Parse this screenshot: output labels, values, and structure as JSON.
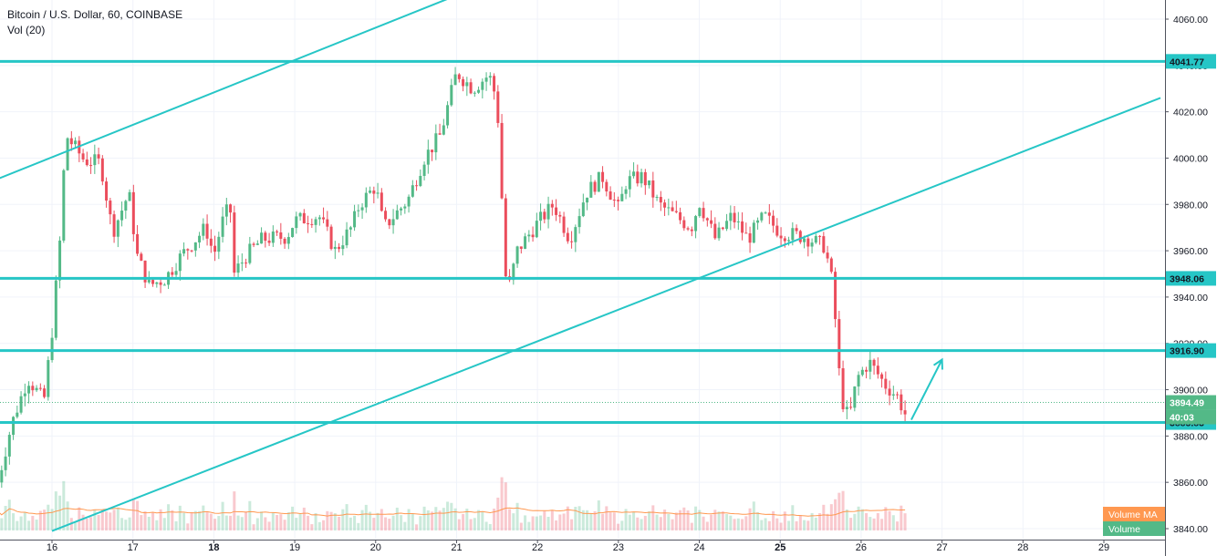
{
  "header": {
    "title": "Bitcoin / U.S. Dollar, 60, COINBASE",
    "subtitle": "Vol (20)"
  },
  "chart_data": {
    "type": "candlestick",
    "symbol": "Bitcoin / U.S. Dollar",
    "interval": "60",
    "exchange": "COINBASE",
    "ylim": [
      3840,
      4063
    ],
    "y_ticks": [
      3840,
      3860,
      3880,
      3900,
      3920,
      3940,
      3960,
      3980,
      4000,
      4020,
      4040,
      4060
    ],
    "x_ticks": [
      {
        "label": "16",
        "day": 16,
        "bold": false
      },
      {
        "label": "17",
        "day": 17,
        "bold": false
      },
      {
        "label": "18",
        "day": 18,
        "bold": true
      },
      {
        "label": "19",
        "day": 19,
        "bold": false
      },
      {
        "label": "20",
        "day": 20,
        "bold": false
      },
      {
        "label": "21",
        "day": 21,
        "bold": false
      },
      {
        "label": "22",
        "day": 22,
        "bold": false
      },
      {
        "label": "23",
        "day": 23,
        "bold": false
      },
      {
        "label": "24",
        "day": 24,
        "bold": false
      },
      {
        "label": "25",
        "day": 25,
        "bold": true
      },
      {
        "label": "26",
        "day": 26,
        "bold": false
      },
      {
        "label": "27",
        "day": 27,
        "bold": false
      },
      {
        "label": "28",
        "day": 28,
        "bold": false
      },
      {
        "label": "29",
        "day": 29,
        "bold": false
      }
    ],
    "xlim_days": [
      15.33,
      29.83
    ],
    "horizontal_levels": [
      {
        "value": "4041.77",
        "y": 4041.77
      },
      {
        "value": "3948.06",
        "y": 3948.06
      },
      {
        "value": "3916.90",
        "y": 3916.9
      },
      {
        "value": "3885.83",
        "y": 3885.83
      }
    ],
    "current_price": {
      "value": "3894.49",
      "y": 3894.49,
      "countdown": "40:03"
    },
    "trendlines": [
      {
        "from": [
          15.33,
          3991
        ],
        "to": [
          20.98,
          4070
        ]
      },
      {
        "from": [
          16.0,
          3839
        ],
        "to": [
          29.7,
          4026
        ]
      }
    ],
    "arrow": {
      "from": [
        26.62,
        3887
      ],
      "to": [
        27.0,
        3913
      ]
    },
    "candle_path": [
      [
        15.33,
        3860
      ],
      [
        15.5,
        3885
      ],
      [
        15.7,
        3905
      ],
      [
        15.9,
        3895
      ],
      [
        16.0,
        3925
      ],
      [
        16.1,
        3965
      ],
      [
        16.17,
        4010
      ],
      [
        16.4,
        3999
      ],
      [
        16.6,
        3998
      ],
      [
        16.75,
        3968
      ],
      [
        16.95,
        3985
      ],
      [
        17.05,
        3958
      ],
      [
        17.2,
        3945
      ],
      [
        17.4,
        3948
      ],
      [
        17.6,
        3958
      ],
      [
        17.9,
        3970
      ],
      [
        18.0,
        3958
      ],
      [
        18.1,
        3972
      ],
      [
        18.2,
        3980
      ],
      [
        18.25,
        3950
      ],
      [
        18.4,
        3958
      ],
      [
        18.6,
        3965
      ],
      [
        18.9,
        3966
      ],
      [
        19.0,
        3973
      ],
      [
        19.3,
        3975
      ],
      [
        19.5,
        3960
      ],
      [
        19.7,
        3970
      ],
      [
        19.8,
        3980
      ],
      [
        20.0,
        3988
      ],
      [
        20.1,
        3970
      ],
      [
        20.4,
        3982
      ],
      [
        20.6,
        4000
      ],
      [
        20.8,
        4010
      ],
      [
        21.0,
        4037
      ],
      [
        21.2,
        4030
      ],
      [
        21.4,
        4036
      ],
      [
        21.5,
        4025
      ],
      [
        21.62,
        3940
      ],
      [
        21.75,
        3960
      ],
      [
        22.0,
        3972
      ],
      [
        22.2,
        3980
      ],
      [
        22.4,
        3965
      ],
      [
        22.6,
        3985
      ],
      [
        22.8,
        3992
      ],
      [
        23.0,
        3978
      ],
      [
        23.1,
        3990
      ],
      [
        23.3,
        3992
      ],
      [
        23.5,
        3980
      ],
      [
        23.7,
        3975
      ],
      [
        23.9,
        3970
      ],
      [
        24.0,
        3981
      ],
      [
        24.2,
        3965
      ],
      [
        24.4,
        3975
      ],
      [
        24.6,
        3965
      ],
      [
        24.8,
        3975
      ],
      [
        25.0,
        3968
      ],
      [
        25.3,
        3966
      ],
      [
        25.55,
        3962
      ],
      [
        25.65,
        3945
      ],
      [
        25.75,
        3897
      ],
      [
        25.85,
        3887
      ],
      [
        25.95,
        3905
      ],
      [
        26.1,
        3912
      ],
      [
        26.3,
        3902
      ],
      [
        26.45,
        3897
      ],
      [
        26.55,
        3889
      ]
    ],
    "volume_ma_label": "Volume MA",
    "volume_label": "Volume"
  }
}
